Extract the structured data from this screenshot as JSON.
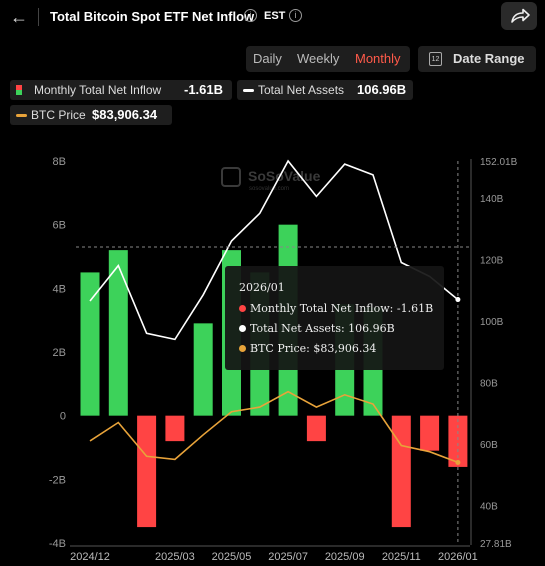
{
  "header": {
    "back_icon": "arrow-left-icon",
    "title": "Total Bitcoin Spot ETF Net Inflow",
    "timezone": "EST",
    "info_icon": "info-icon",
    "share_icon": "share-icon"
  },
  "controls": {
    "tabs": [
      {
        "label": "Daily",
        "active": false
      },
      {
        "label": "Weekly",
        "active": false
      },
      {
        "label": "Monthly",
        "active": true
      }
    ],
    "date_range_label": "Date Range",
    "calendar_icon_text": "12"
  },
  "legend": {
    "net_inflow": {
      "label": "Monthly Total Net Inflow",
      "value": "-1.61B"
    },
    "net_assets": {
      "label": "Total Net Assets",
      "value": "106.96B"
    },
    "btc_price": {
      "label": "BTC Price",
      "value": "$83,906.34"
    }
  },
  "watermark": {
    "name": "SoSoValue",
    "url": "sosovalue.com"
  },
  "tooltip": {
    "title": "2026/01",
    "rows": [
      {
        "label": "Monthly Total Net Inflow: -1.61B",
        "color": "#ff4444"
      },
      {
        "label": "Total Net Assets: 106.96B",
        "color": "#ffffff"
      },
      {
        "label": "BTC Price: $83,906.34",
        "color": "#e8a33a"
      }
    ]
  },
  "colors": {
    "positive": "#3dd25a",
    "negative": "#ff4444",
    "assets_line": "#ffffff",
    "price_line": "#e8a33a"
  },
  "chart_data": {
    "type": "bar",
    "categories": [
      "2024/12",
      "2025/01",
      "2025/02",
      "2025/03",
      "2025/04",
      "2025/05",
      "2025/06",
      "2025/07",
      "2025/08",
      "2025/09",
      "2025/10",
      "2025/11",
      "2025/12",
      "2026/01"
    ],
    "x_tick_labels": [
      "2024/12",
      "2025/03",
      "2025/05",
      "2025/07",
      "2025/09",
      "2025/11",
      "2026/01"
    ],
    "x_tick_indices": [
      0,
      3,
      5,
      7,
      9,
      11,
      13
    ],
    "series": [
      {
        "name": "Monthly Total Net Inflow",
        "axis": "left",
        "type": "bar",
        "unit": "B",
        "values": [
          4.5,
          5.2,
          -3.5,
          -0.8,
          2.9,
          5.2,
          4.5,
          6.0,
          -0.8,
          3.5,
          3.4,
          -3.5,
          -1.1,
          -1.61
        ]
      },
      {
        "name": "Total Net Assets",
        "axis": "right",
        "type": "line",
        "unit": "B",
        "values": [
          106.5,
          118.0,
          96.0,
          94.0,
          108.5,
          126.0,
          135.0,
          152.0,
          140.5,
          151.0,
          147.5,
          119.0,
          114.5,
          106.96
        ]
      },
      {
        "name": "BTC Price",
        "axis": "right",
        "type": "line",
        "values": [
          61.0,
          67.0,
          56.0,
          55.0,
          63.0,
          70.5,
          72.0,
          77.0,
          72.0,
          76.0,
          73.0,
          59.5,
          57.5,
          54.0
        ]
      }
    ],
    "left_axis": {
      "min": -4,
      "max": 8,
      "ticks": [
        -4,
        -2,
        0,
        2,
        4,
        6,
        8
      ],
      "labels": [
        "-4B",
        "-2B",
        "0",
        "2B",
        "4B",
        "6B",
        "8B"
      ]
    },
    "right_axis": {
      "min": 27.81,
      "max": 152.01,
      "ticks": [
        27.81,
        40,
        60,
        80,
        100,
        120,
        140,
        152.01
      ],
      "labels": [
        "27.81B",
        "40B",
        "60B",
        "80B",
        "100B",
        "120B",
        "140B",
        "152.01B"
      ]
    },
    "grid": false,
    "legend_position": "top-left"
  }
}
